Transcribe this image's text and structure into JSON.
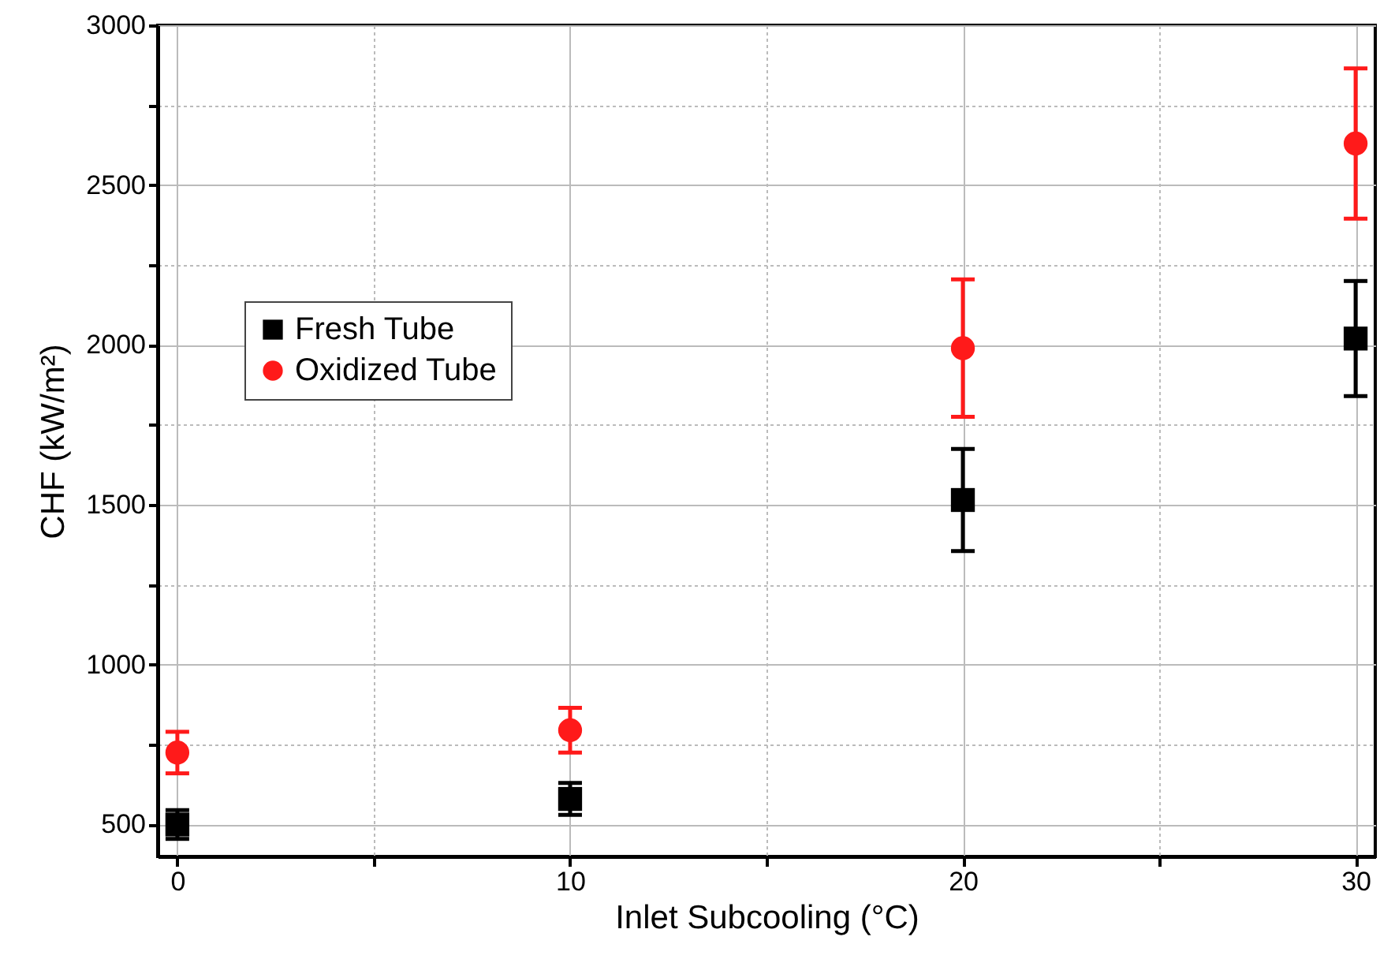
{
  "chart_data": {
    "type": "scatter",
    "xlabel": "Inlet Subcooling (°C)",
    "ylabel": "CHF (kW/m²)",
    "x": [
      0,
      10,
      20,
      30
    ],
    "series": [
      {
        "name": "Fresh Tube",
        "color": "#000000",
        "marker": "square",
        "values": [
          500,
          580,
          1515,
          2020
        ],
        "errors": [
          45,
          50,
          160,
          180
        ]
      },
      {
        "name": "Oxidized Tube",
        "color": "#ff1a1a",
        "marker": "circle",
        "values": [
          725,
          795,
          1990,
          2630
        ],
        "errors": [
          65,
          70,
          215,
          235
        ]
      }
    ],
    "xlim": [
      -0.5,
      30.5
    ],
    "xticks": [
      0,
      {
        "value": 5,
        "label": null
      },
      10,
      {
        "value": 15,
        "label": null
      },
      20,
      {
        "value": 25,
        "label": null
      },
      30
    ],
    "ylim": [
      400,
      3000
    ],
    "yticks": [
      500,
      {
        "value": 750,
        "label": null
      },
      1000,
      {
        "value": 1250,
        "label": null
      },
      1500,
      {
        "value": 1750,
        "label": null
      },
      2000,
      {
        "value": 2250,
        "label": null
      },
      2500,
      {
        "value": 2750,
        "label": null
      },
      3000
    ],
    "grid": true,
    "legend": "left"
  }
}
